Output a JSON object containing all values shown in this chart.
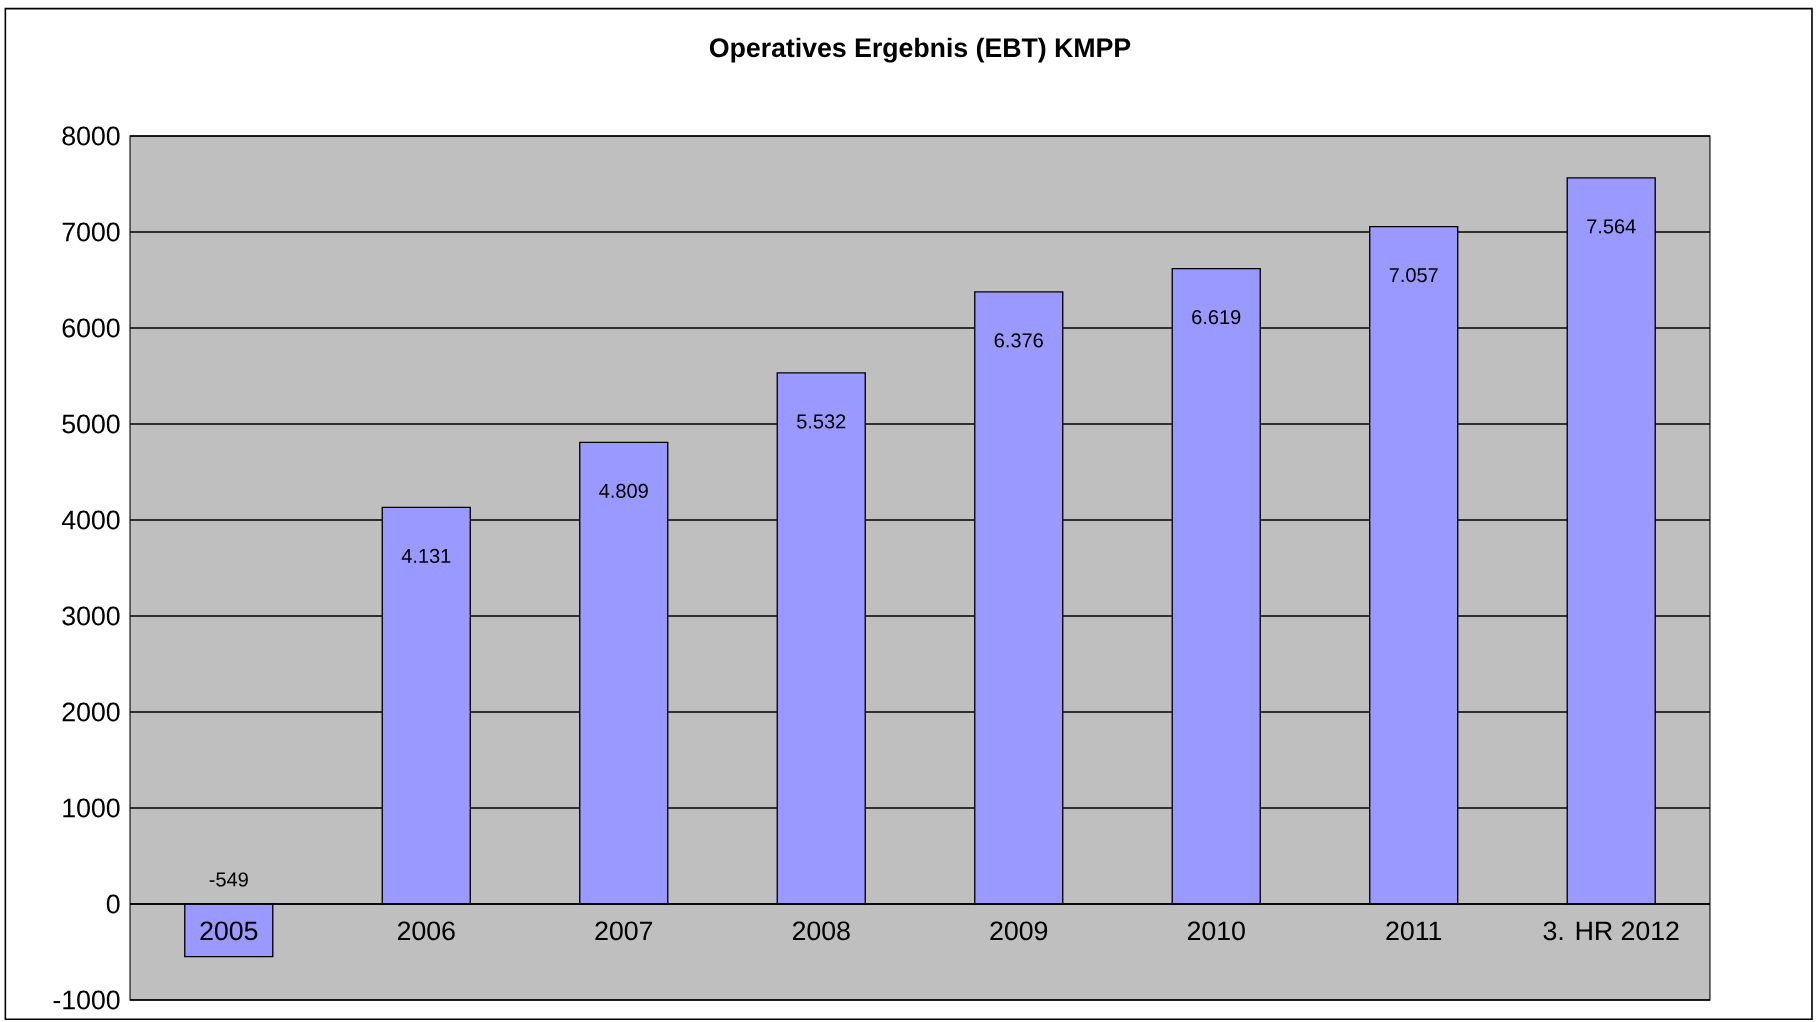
{
  "chart_data": {
    "type": "bar",
    "title": "Operatives Ergebnis (EBT) KMPP",
    "categories": [
      "2005",
      "2006",
      "2007",
      "2008",
      "2009",
      "2010",
      "2011",
      "3. HR 2012"
    ],
    "values": [
      -549,
      4131,
      4809,
      5532,
      6376,
      6619,
      7057,
      7564
    ],
    "value_labels": [
      "-549",
      "4.131",
      "4.809",
      "5.532",
      "6.376",
      "6.619",
      "7.057",
      "7.564"
    ],
    "color": "#9999ff",
    "ylim": [
      -1000,
      8000
    ],
    "yticks": [
      -1000,
      0,
      1000,
      2000,
      3000,
      4000,
      5000,
      6000,
      7000,
      8000
    ],
    "grid": "y"
  }
}
